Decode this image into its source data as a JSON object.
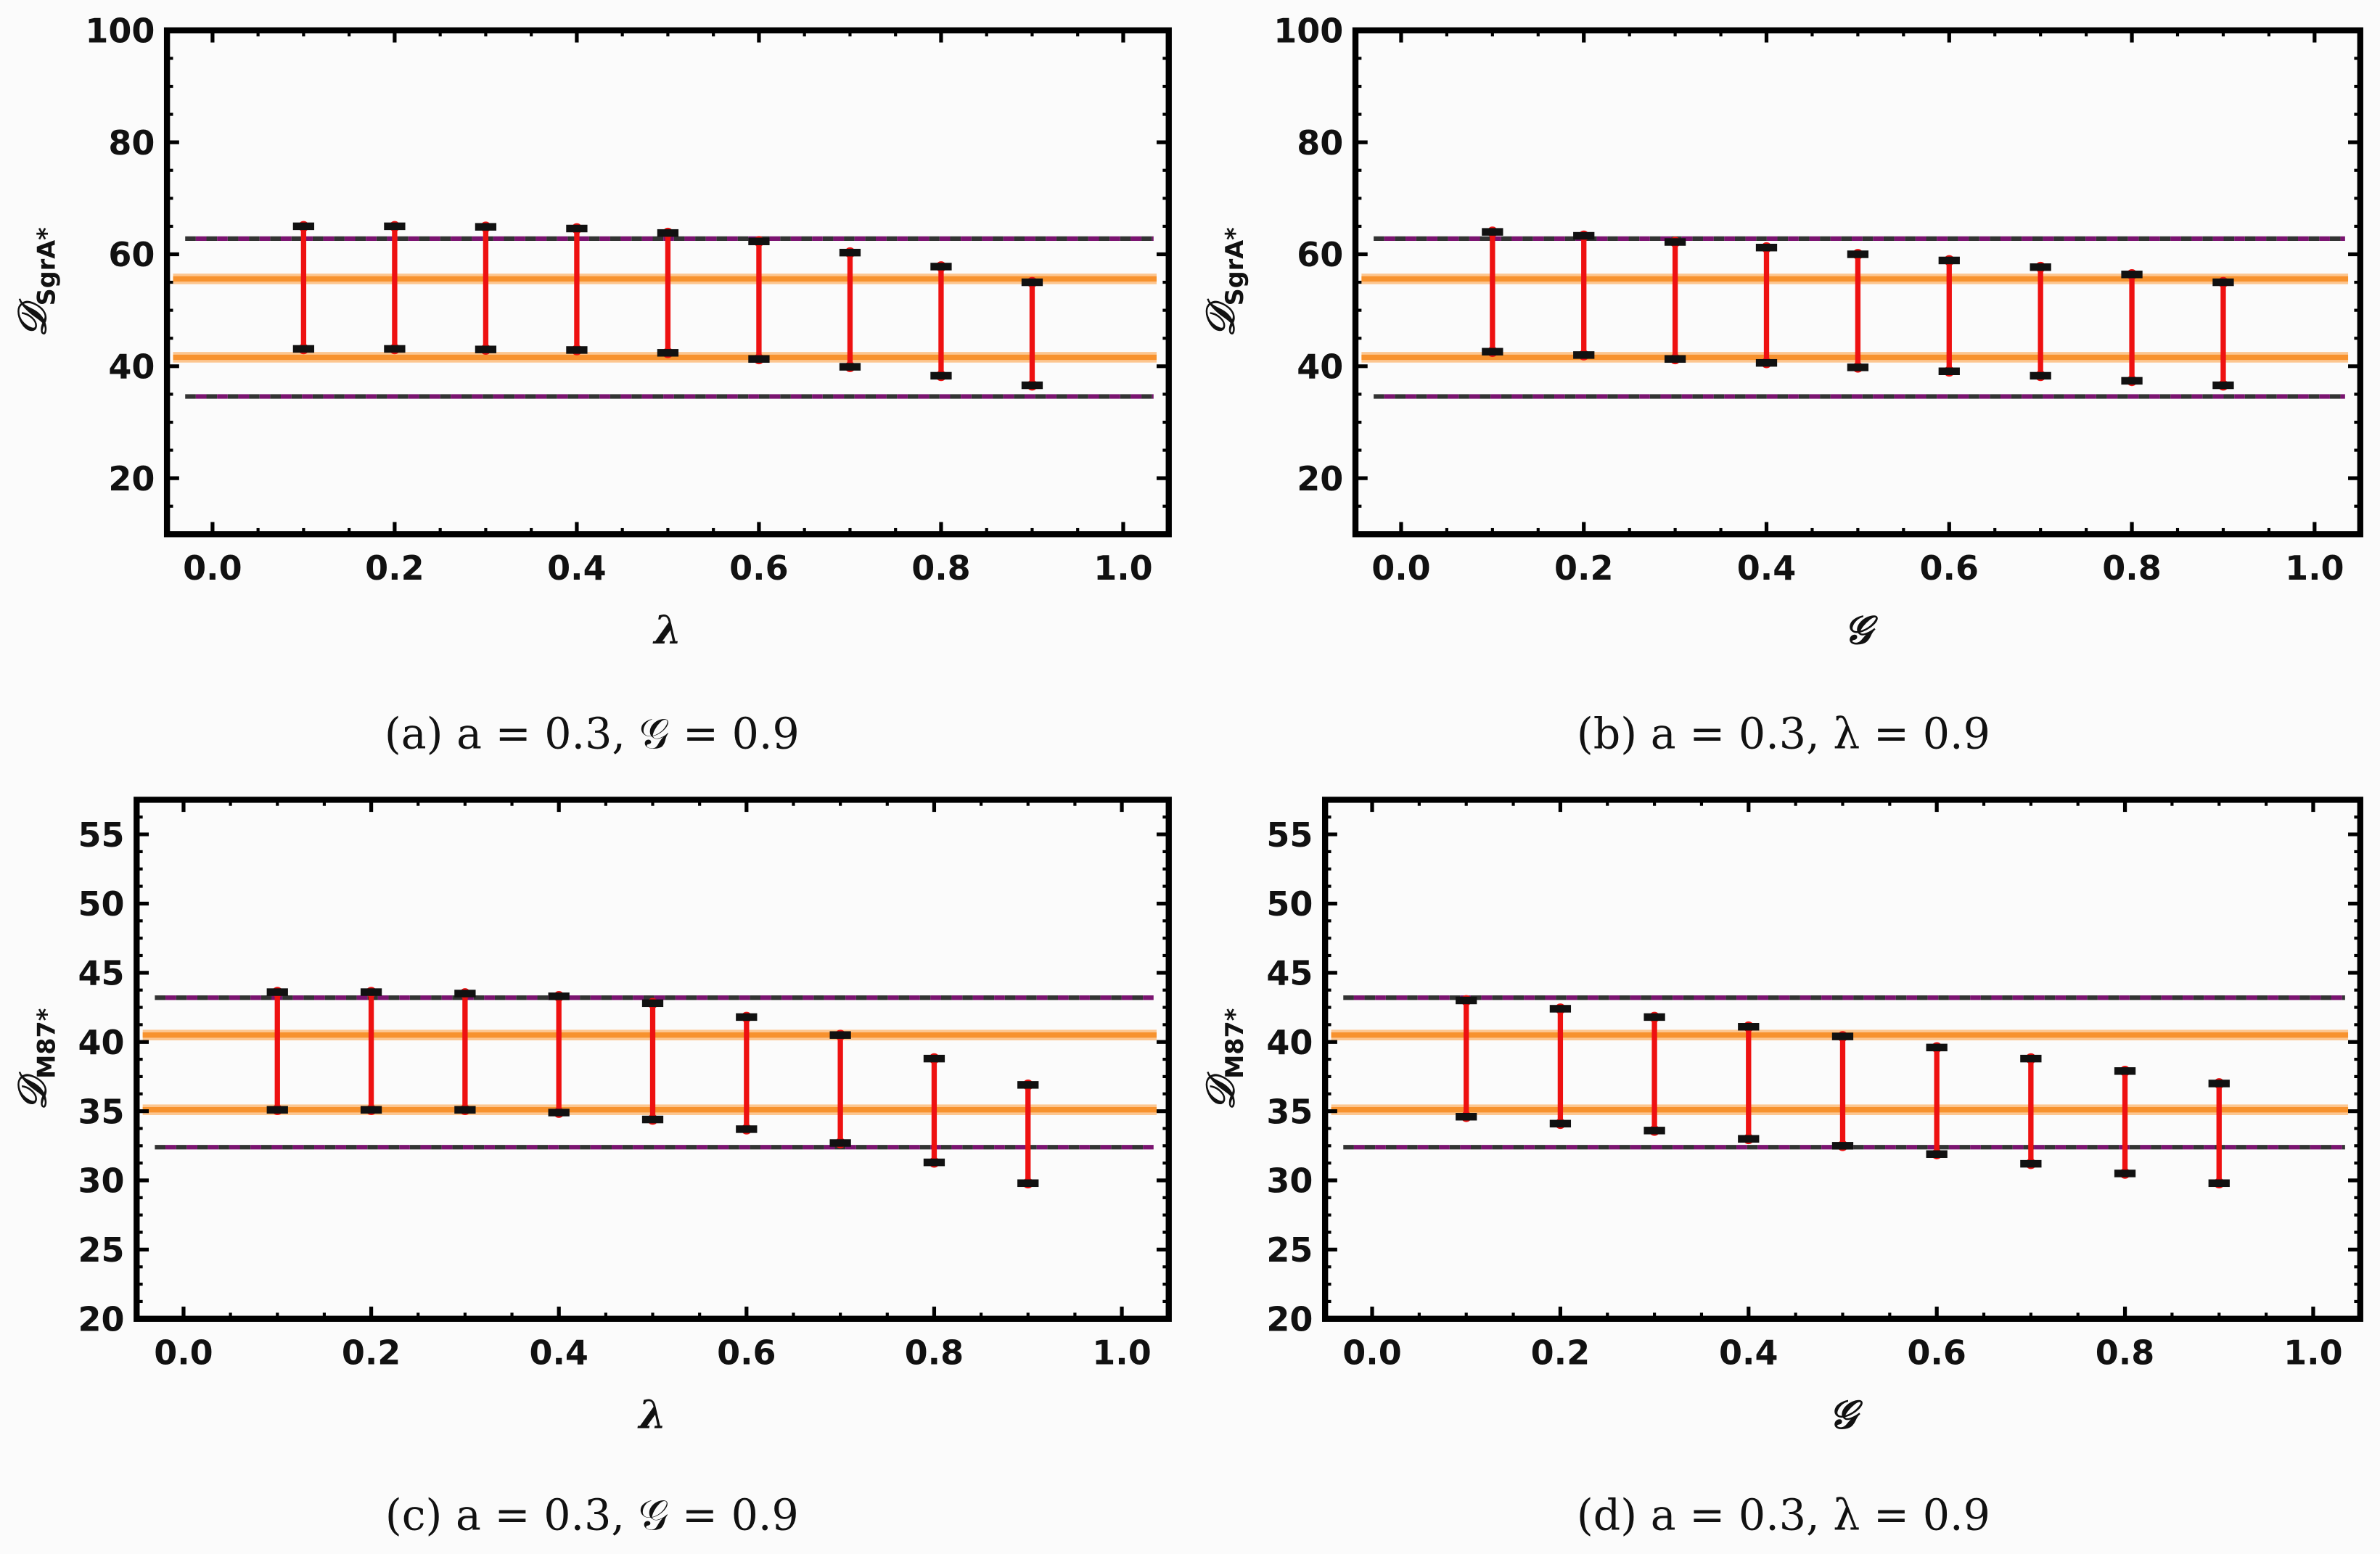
{
  "colors": {
    "errorbar": "#ee1111",
    "cap": "#111111",
    "band": "#f7922e",
    "dashed": "#7a1470",
    "frame": "#000000",
    "background": "#fbfbfb"
  },
  "chart_data": [
    {
      "type": "errorbar",
      "caption": "(a) a = 0.3, 𝒢 = 0.9",
      "xlabel": "λ",
      "ylabel": "𝒟",
      "ylabel_sub": "SgrA*",
      "xlim": [
        -0.05,
        1.05
      ],
      "ylim": [
        10,
        100
      ],
      "xticks": [
        "0.0",
        "0.2",
        "0.4",
        "0.6",
        "0.8",
        "1.0"
      ],
      "yticks": [
        "20",
        "40",
        "60",
        "80",
        "100"
      ],
      "x": [
        0.1,
        0.2,
        0.3,
        0.4,
        0.5,
        0.6,
        0.7,
        0.8,
        0.9
      ],
      "upper": [
        65.0,
        65.0,
        64.9,
        64.6,
        63.8,
        62.3,
        60.3,
        57.8,
        55.0
      ],
      "lower": [
        43.1,
        43.1,
        43.0,
        42.9,
        42.4,
        41.3,
        39.9,
        38.3,
        36.6
      ],
      "solid_lines": [
        55.6,
        41.6
      ],
      "dashed_lines": [
        62.8,
        34.6
      ]
    },
    {
      "type": "errorbar",
      "caption": "(b) a = 0.3, λ = 0.9",
      "xlabel": "𝒢",
      "ylabel": "𝒟",
      "ylabel_sub": "SgrA*",
      "xlim": [
        -0.05,
        1.05
      ],
      "ylim": [
        10,
        100
      ],
      "xticks": [
        "0.0",
        "0.2",
        "0.4",
        "0.6",
        "0.8",
        "1.0"
      ],
      "yticks": [
        "20",
        "40",
        "60",
        "80",
        "100"
      ],
      "x": [
        0.1,
        0.2,
        0.3,
        0.4,
        0.5,
        0.6,
        0.7,
        0.8,
        0.9
      ],
      "upper": [
        64.0,
        63.3,
        62.2,
        61.2,
        60.0,
        58.9,
        57.7,
        56.4,
        55.0
      ],
      "lower": [
        42.6,
        42.0,
        41.3,
        40.6,
        39.8,
        39.1,
        38.3,
        37.4,
        36.6
      ],
      "solid_lines": [
        55.6,
        41.6
      ],
      "dashed_lines": [
        62.8,
        34.6
      ]
    },
    {
      "type": "errorbar",
      "caption": "(c) a = 0.3, 𝒢 = 0.9",
      "xlabel": "λ",
      "ylabel": "𝒟",
      "ylabel_sub": "M87*",
      "xlim": [
        -0.05,
        1.05
      ],
      "ylim": [
        20,
        57.5
      ],
      "xticks": [
        "0.0",
        "0.2",
        "0.4",
        "0.6",
        "0.8",
        "1.0"
      ],
      "yticks": [
        "20",
        "25",
        "30",
        "35",
        "40",
        "45",
        "50",
        "55"
      ],
      "x": [
        0.1,
        0.2,
        0.3,
        0.4,
        0.5,
        0.6,
        0.7,
        0.8,
        0.9
      ],
      "upper": [
        43.6,
        43.6,
        43.5,
        43.3,
        42.8,
        41.8,
        40.5,
        38.8,
        36.9
      ],
      "lower": [
        35.1,
        35.1,
        35.1,
        34.9,
        34.4,
        33.7,
        32.7,
        31.3,
        29.8
      ],
      "solid_lines": [
        40.5,
        35.1
      ],
      "dashed_lines": [
        43.2,
        32.4
      ]
    },
    {
      "type": "errorbar",
      "caption": "(d) a = 0.3, λ = 0.9",
      "xlabel": "𝒢",
      "ylabel": "𝒟",
      "ylabel_sub": "M87*",
      "xlim": [
        -0.05,
        1.05
      ],
      "ylim": [
        20,
        57.5
      ],
      "xticks": [
        "0.0",
        "0.2",
        "0.4",
        "0.6",
        "0.8",
        "1.0"
      ],
      "yticks": [
        "20",
        "25",
        "30",
        "35",
        "40",
        "45",
        "50",
        "55"
      ],
      "x": [
        0.1,
        0.2,
        0.3,
        0.4,
        0.5,
        0.6,
        0.7,
        0.8,
        0.9
      ],
      "upper": [
        43.0,
        42.4,
        41.8,
        41.1,
        40.4,
        39.6,
        38.8,
        37.9,
        37.0
      ],
      "lower": [
        34.6,
        34.1,
        33.6,
        33.0,
        32.5,
        31.9,
        31.2,
        30.5,
        29.8
      ],
      "solid_lines": [
        40.5,
        35.1
      ],
      "dashed_lines": [
        43.2,
        32.4
      ]
    }
  ]
}
